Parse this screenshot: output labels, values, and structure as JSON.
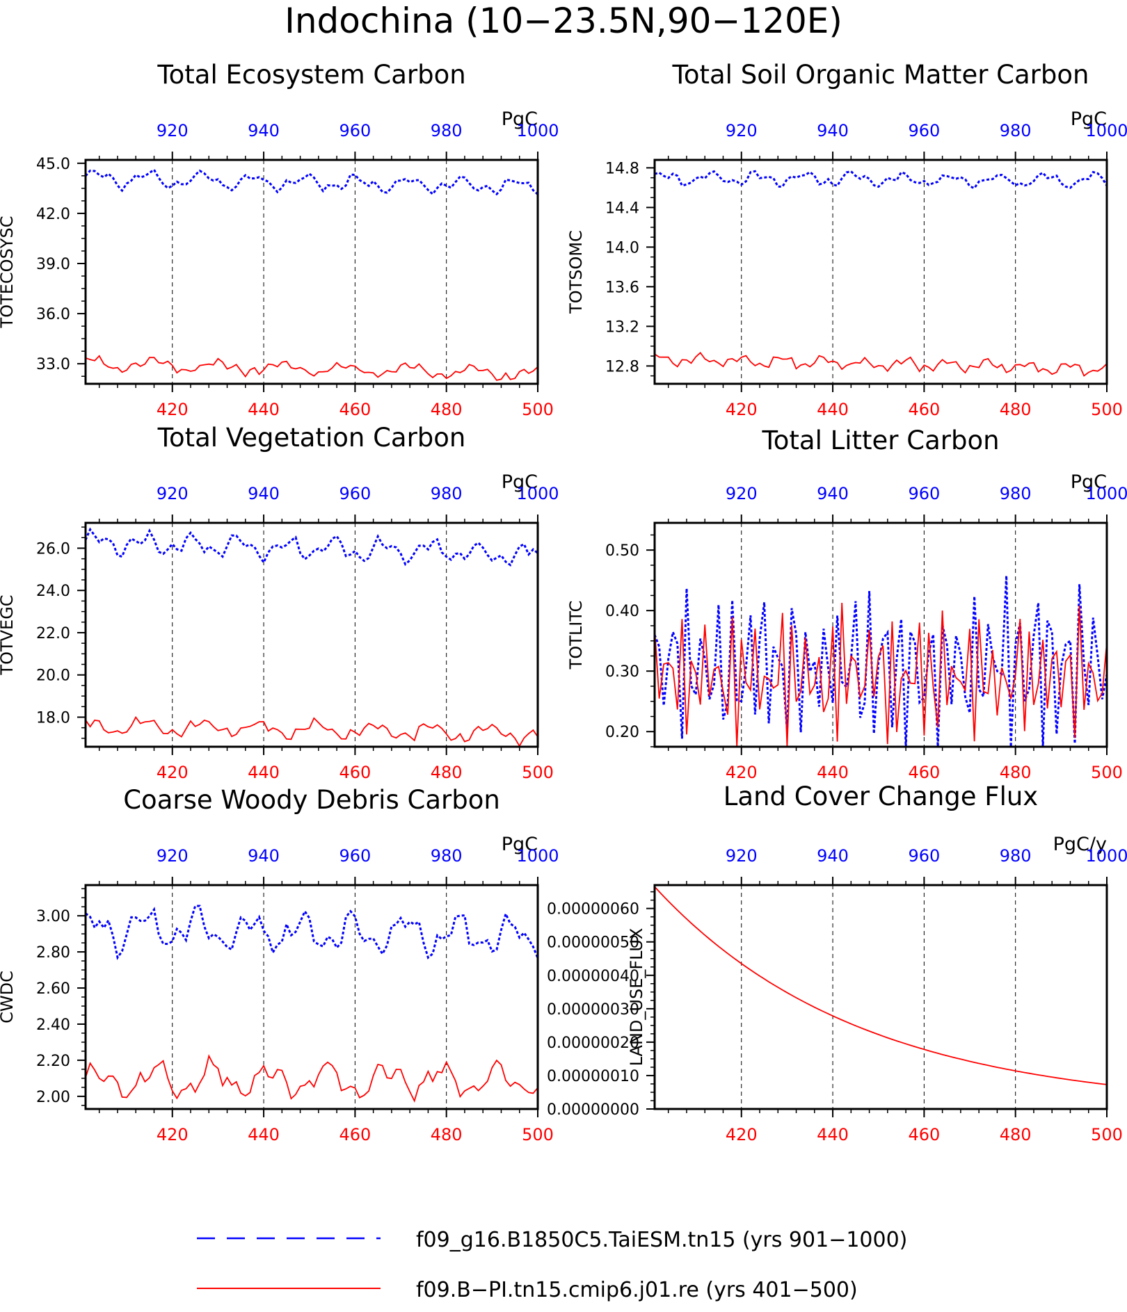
{
  "title": "Indochina (10−23.5N,90−120E)",
  "colors": {
    "series_blue": "#0000ff",
    "series_red": "#ff0000",
    "grid": "#000000"
  },
  "legend": [
    {
      "label": "f09_g16.B1850C5.TaiESM.tn15 (yrs 901−1000)",
      "color": "#0000ff",
      "style": "dashed"
    },
    {
      "label": "f09.B−PI.tn15.cmip6.j01.re (yrs 401−500)",
      "color": "#ff0000",
      "style": "solid"
    }
  ],
  "chart_data": [
    {
      "type": "line",
      "title": "Total Ecosystem Carbon",
      "ylabel": "TOTECOSYSC",
      "units": "PgC",
      "ylim": [
        31.8,
        45.2
      ],
      "yticks": [
        "33.0",
        "36.0",
        "39.0",
        "42.0",
        "45.0"
      ],
      "ytick_values": [
        33,
        36,
        39,
        42,
        45
      ],
      "bottom_xlim": [
        401,
        500
      ],
      "bottom_xticks": [
        "420",
        "440",
        "460",
        "480",
        "500"
      ],
      "top_xlim": [
        901,
        1000
      ],
      "top_xticks": [
        "920",
        "940",
        "960",
        "980",
        "1000"
      ],
      "grid": "vertical dashed",
      "series": [
        {
          "color": "blue",
          "style": "dotted",
          "generator": {
            "base": 44.1,
            "trend": -0.5,
            "amp": 0.35,
            "freq": 0.55,
            "phase": 0.3,
            "amp2": 0.2,
            "freq2": 1.3,
            "seed": 3
          }
        },
        {
          "color": "red",
          "style": "solid",
          "generator": {
            "base": 33.0,
            "trend": -0.6,
            "amp": 0.3,
            "freq": 0.45,
            "phase": 1.1,
            "amp2": 0.2,
            "freq2": 1.7,
            "seed": 7
          }
        }
      ]
    },
    {
      "type": "line",
      "title": "Total Soil Organic Matter Carbon",
      "ylabel": "TOTSOMC",
      "units": "PgC",
      "ylim": [
        12.62,
        14.88
      ],
      "yticks": [
        "12.8",
        "13.2",
        "13.6",
        "14.0",
        "14.4",
        "14.8"
      ],
      "ytick_values": [
        12.8,
        13.2,
        13.6,
        14.0,
        14.4,
        14.8
      ],
      "bottom_xlim": [
        401,
        500
      ],
      "bottom_xticks": [
        "420",
        "440",
        "460",
        "480",
        "500"
      ],
      "top_xlim": [
        901,
        1000
      ],
      "top_xticks": [
        "920",
        "940",
        "960",
        "980",
        "1000"
      ],
      "grid": "vertical dashed",
      "series": [
        {
          "color": "blue",
          "style": "dotted",
          "generator": {
            "base": 14.7,
            "trend": -0.03,
            "amp": 0.05,
            "freq": 0.6,
            "phase": 0.5,
            "amp2": 0.03,
            "freq2": 1.5,
            "seed": 11
          }
        },
        {
          "color": "red",
          "style": "solid",
          "generator": {
            "base": 12.87,
            "trend": -0.1,
            "amp": 0.04,
            "freq": 0.7,
            "phase": 0.9,
            "amp2": 0.03,
            "freq2": 1.9,
            "seed": 13
          }
        }
      ]
    },
    {
      "type": "line",
      "title": "Total Vegetation Carbon",
      "ylabel": "TOTVEGC",
      "units": "PgC",
      "ylim": [
        16.6,
        27.2
      ],
      "yticks": [
        "18.0",
        "20.0",
        "22.0",
        "24.0",
        "26.0"
      ],
      "ytick_values": [
        18,
        20,
        22,
        24,
        26
      ],
      "bottom_xlim": [
        401,
        500
      ],
      "bottom_xticks": [
        "420",
        "440",
        "460",
        "480",
        "500"
      ],
      "top_xlim": [
        901,
        1000
      ],
      "top_xticks": [
        "920",
        "940",
        "960",
        "980",
        "1000"
      ],
      "grid": "vertical dashed",
      "series": [
        {
          "color": "blue",
          "style": "dotted",
          "generator": {
            "base": 26.3,
            "trend": -0.6,
            "amp": 0.35,
            "freq": 0.6,
            "phase": 0.2,
            "amp2": 0.25,
            "freq2": 1.4,
            "seed": 17
          }
        },
        {
          "color": "red",
          "style": "solid",
          "generator": {
            "base": 17.6,
            "trend": -0.4,
            "amp": 0.3,
            "freq": 0.5,
            "phase": 1.4,
            "amp2": 0.2,
            "freq2": 1.6,
            "seed": 19
          }
        }
      ]
    },
    {
      "type": "line",
      "title": "Total Litter Carbon",
      "ylabel": "TOTLITC",
      "units": "PgC",
      "ylim": [
        0.175,
        0.545
      ],
      "yticks": [
        "0.20",
        "0.30",
        "0.40",
        "0.50"
      ],
      "ytick_values": [
        0.2,
        0.3,
        0.4,
        0.5
      ],
      "bottom_xlim": [
        401,
        500
      ],
      "bottom_xticks": [
        "420",
        "440",
        "460",
        "480",
        "500"
      ],
      "top_xlim": [
        901,
        1000
      ],
      "top_xticks": [
        "920",
        "940",
        "960",
        "980",
        "1000"
      ],
      "grid": "vertical dashed",
      "series": [
        {
          "color": "blue",
          "style": "dotted",
          "generator": {
            "base": 0.31,
            "trend": 0.0,
            "amp": 0.08,
            "freq": 1.9,
            "phase": 0.4,
            "amp2": 0.05,
            "freq2": 2.7,
            "seed": 23
          }
        },
        {
          "color": "red",
          "style": "solid",
          "generator": {
            "base": 0.29,
            "trend": 0.0,
            "amp": 0.06,
            "freq": 2.3,
            "phase": 1.0,
            "amp2": 0.05,
            "freq2": 2.9,
            "seed": 29
          }
        }
      ]
    },
    {
      "type": "line",
      "title": "Coarse Woody Debris Carbon",
      "ylabel": "CWDC",
      "units": "PgC",
      "ylim": [
        1.93,
        3.17
      ],
      "yticks": [
        "2.00",
        "2.20",
        "2.40",
        "2.60",
        "2.80",
        "3.00"
      ],
      "ytick_values": [
        2.0,
        2.2,
        2.4,
        2.6,
        2.8,
        3.0
      ],
      "bottom_xlim": [
        401,
        500
      ],
      "bottom_xticks": [
        "420",
        "440",
        "460",
        "480",
        "500"
      ],
      "top_xlim": [
        901,
        1000
      ],
      "top_xticks": [
        "920",
        "940",
        "960",
        "980",
        "1000"
      ],
      "grid": "vertical dashed",
      "series": [
        {
          "color": "blue",
          "style": "dotted",
          "generator": {
            "base": 2.93,
            "trend": -0.05,
            "amp": 0.08,
            "freq": 0.55,
            "phase": 0.7,
            "amp2": 0.05,
            "freq2": 1.3,
            "seed": 31
          }
        },
        {
          "color": "red",
          "style": "solid",
          "generator": {
            "base": 2.09,
            "trend": 0.0,
            "amp": 0.07,
            "freq": 0.5,
            "phase": 0.2,
            "amp2": 0.04,
            "freq2": 1.2,
            "seed": 37
          }
        }
      ]
    },
    {
      "type": "line",
      "title": "Land Cover Change Flux",
      "ylabel": "LAND_USE_FLUX",
      "units": "PgC/y",
      "ylim": [
        0.0,
        6.7e-07
      ],
      "yticks": [
        "0.00000000",
        "0.00000010",
        "0.00000020",
        "0.00000030",
        "0.00000040",
        "0.00000050",
        "0.00000060"
      ],
      "ytick_values": [
        0,
        1e-07,
        2e-07,
        3e-07,
        4e-07,
        5e-07,
        6e-07
      ],
      "bottom_xlim": [
        401,
        500
      ],
      "bottom_xticks": [
        "420",
        "440",
        "460",
        "480",
        "500"
      ],
      "top_xlim": [
        901,
        1000
      ],
      "top_xticks": [
        "920",
        "940",
        "960",
        "980",
        "1000"
      ],
      "grid": "vertical dashed",
      "series": [
        {
          "color": "blue",
          "style": "dotted",
          "constant": 0.0
        },
        {
          "color": "red",
          "style": "solid",
          "exponential": {
            "x0": 401,
            "y0": 6.65e-07,
            "x1": 500,
            "y1": 7.3e-08
          }
        }
      ]
    }
  ]
}
